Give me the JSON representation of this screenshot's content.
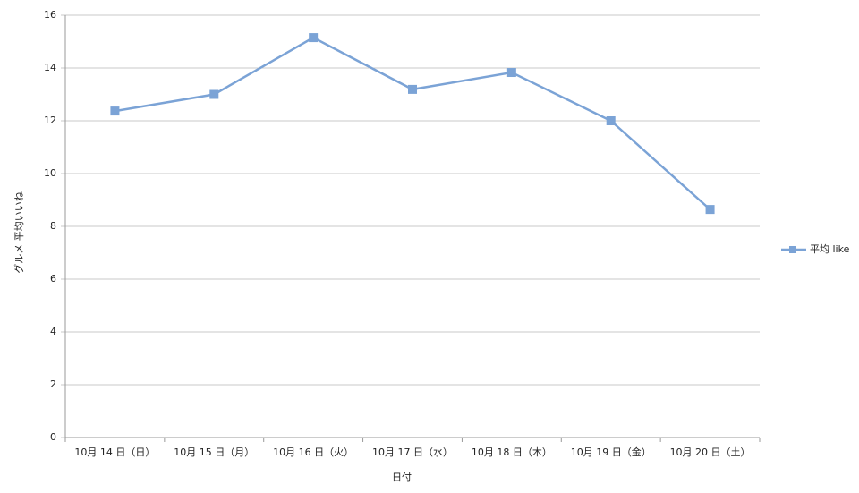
{
  "chart_data": {
    "type": "line",
    "x_label": "日付",
    "y_label": "グルメ 平均いいね",
    "categories": [
      "10月 14 日（日）",
      "10月 15 日（月）",
      "10月 16 日（火）",
      "10月 17 日（水）",
      "10月 18 日（木）",
      "10月 19 日（金）",
      "10月 20 日（土）"
    ],
    "series": [
      {
        "name": "平均 like",
        "color": "#7ba3d6",
        "values": [
          12.37,
          13.0,
          15.15,
          13.19,
          13.83,
          12.0,
          8.64
        ]
      }
    ],
    "ylim": [
      0,
      16
    ],
    "yticks": [
      0,
      2,
      4,
      6,
      8,
      10,
      12,
      14,
      16
    ],
    "grid": true,
    "legend": "right"
  }
}
